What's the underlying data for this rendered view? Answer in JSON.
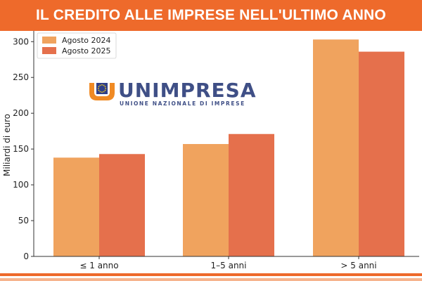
{
  "header": {
    "title": "IL CREDITO ALLE IMPRESE NELL'ULTIMO ANNO"
  },
  "logo": {
    "name": "UNIMPRESA",
    "subtitle": "UNIONE NAZIONALE DI IMPRESE"
  },
  "colors": {
    "banner": "#ee6a2b",
    "series_2024": "#f0a35e",
    "series_2025": "#e5704c"
  },
  "chart_data": {
    "type": "bar",
    "title": "",
    "xlabel": "",
    "ylabel": "Miliardi di euro",
    "categories": [
      "≤ 1 anno",
      "1–5 anni",
      "> 5 anni"
    ],
    "series": [
      {
        "name": "Agosto 2024",
        "values": [
          138,
          157,
          303
        ]
      },
      {
        "name": "Agosto 2025",
        "values": [
          143,
          171,
          286
        ]
      }
    ],
    "ylim": [
      0,
      315
    ],
    "yticks": [
      0,
      50,
      100,
      150,
      200,
      250,
      300
    ],
    "grid": false,
    "legend": "top-left"
  }
}
